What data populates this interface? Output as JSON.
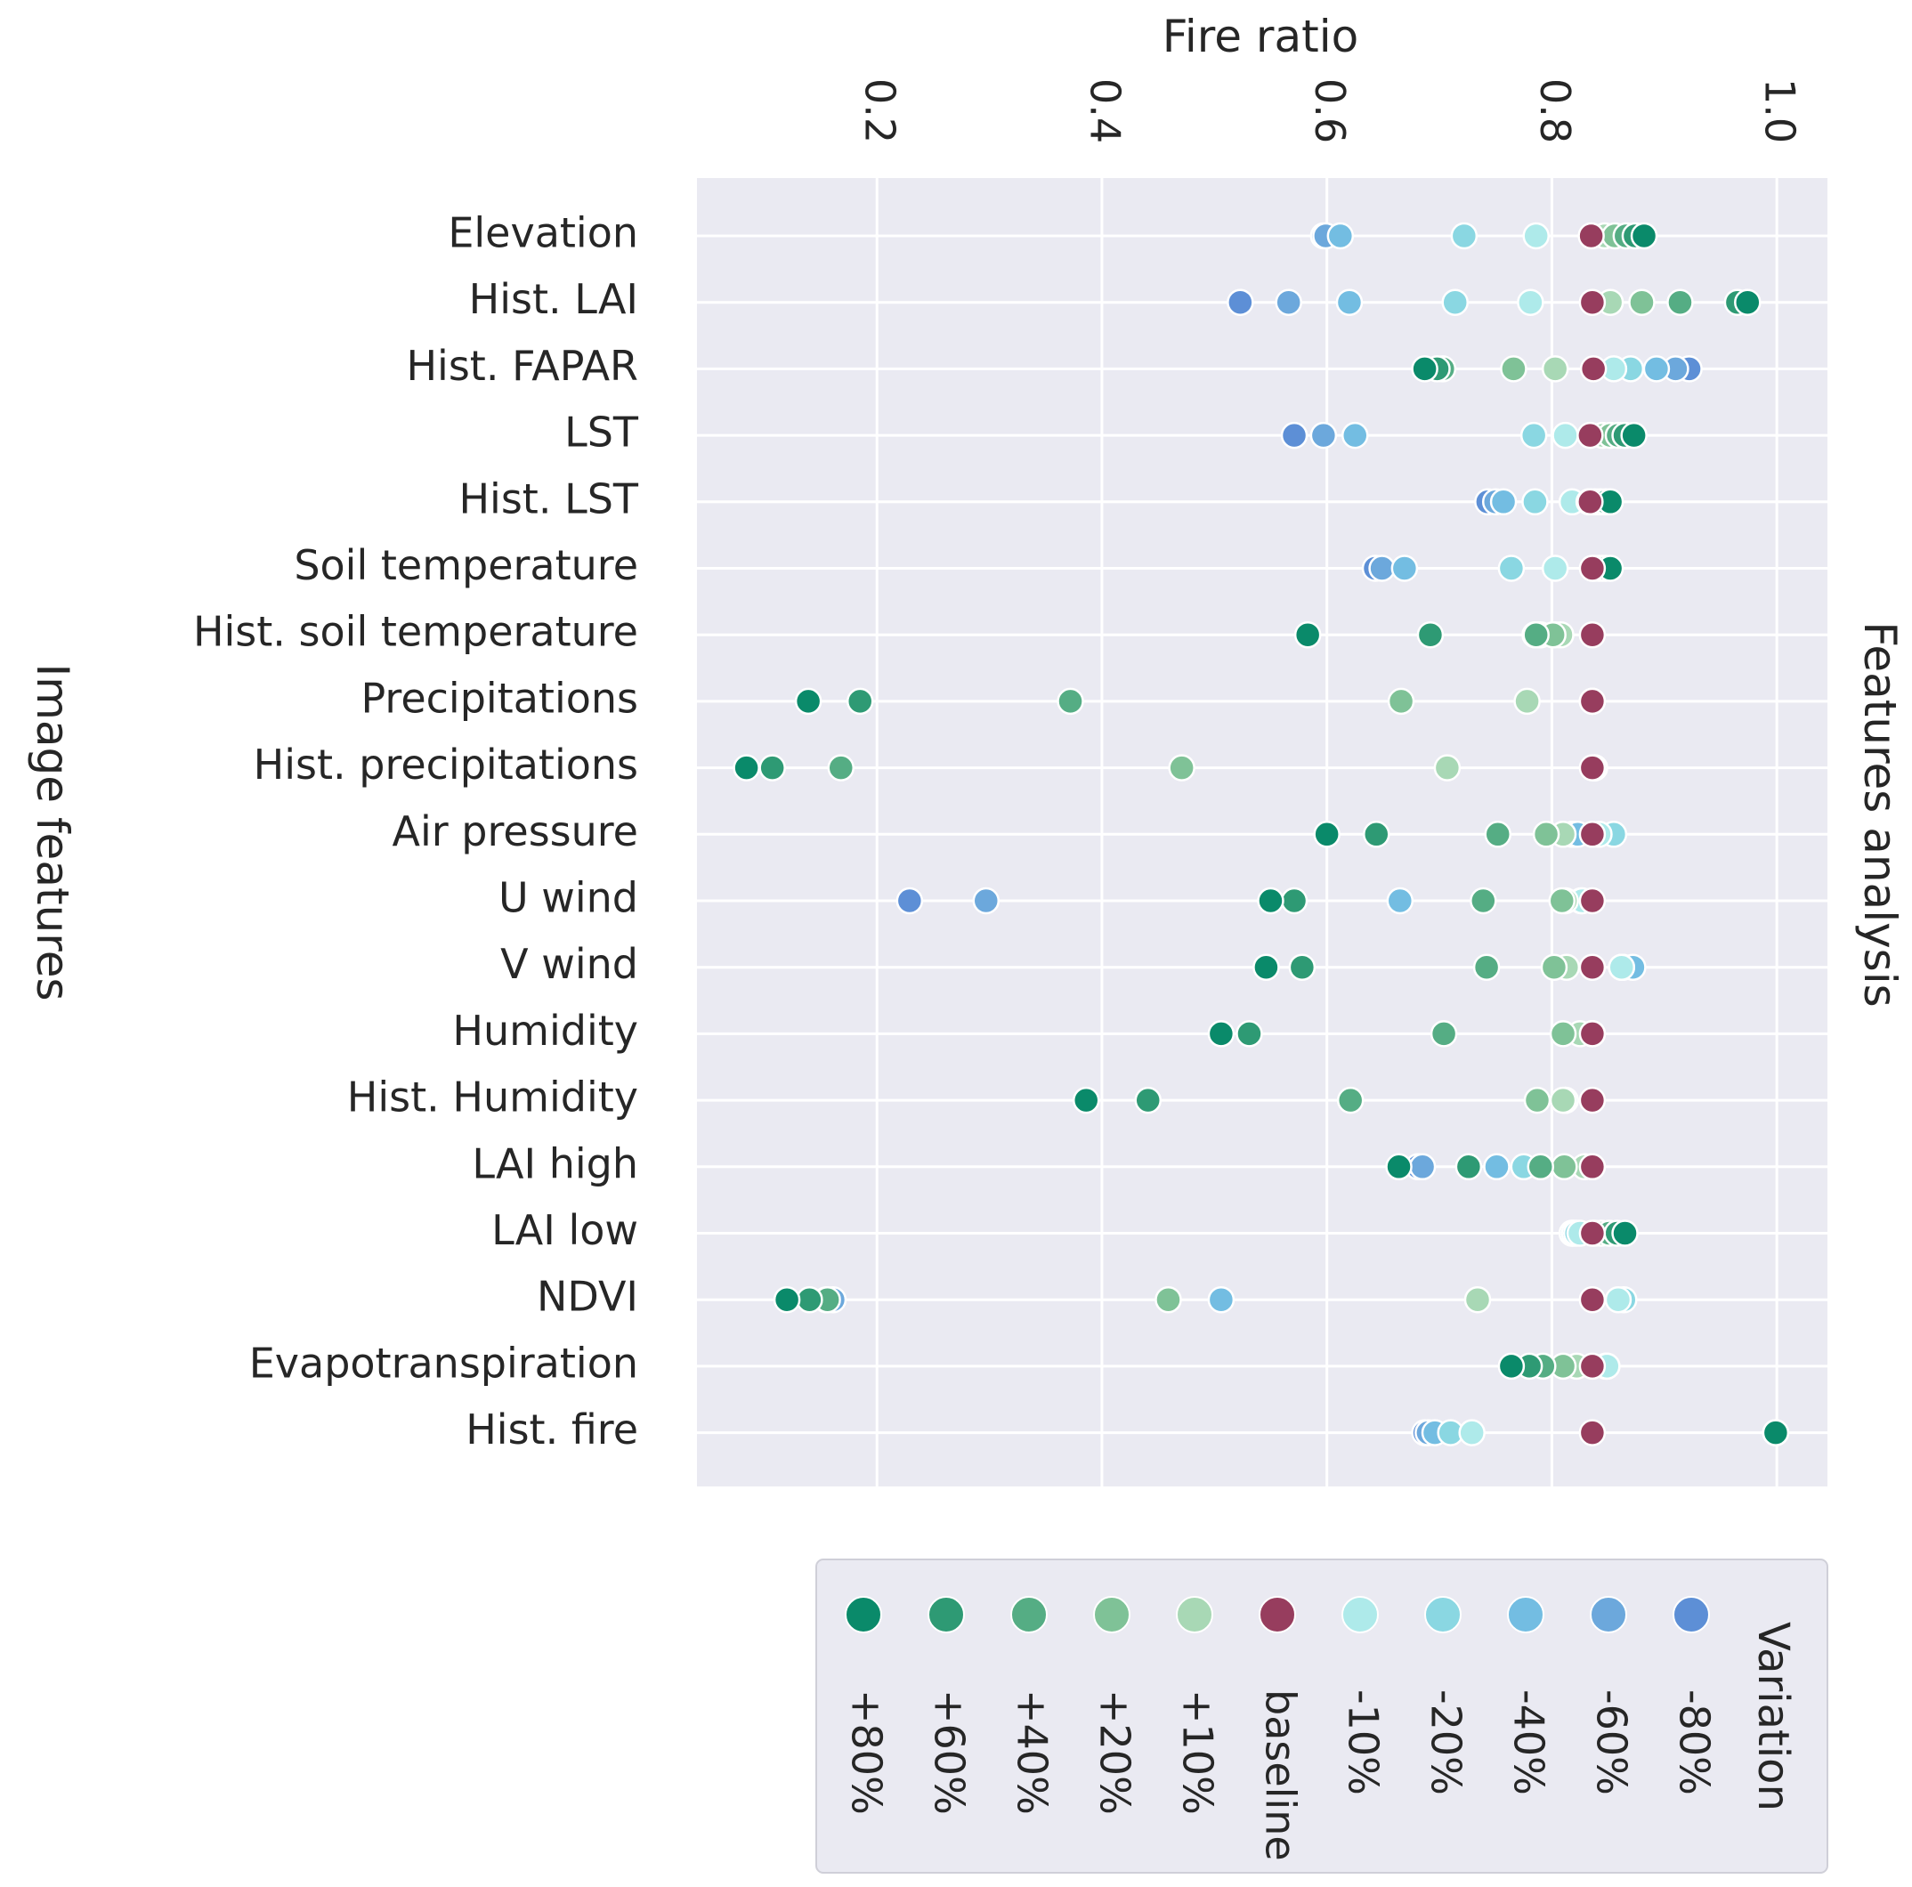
{
  "chart_data": {
    "type": "scatter",
    "title": "Features analysis",
    "xlabel": "Fire ratio",
    "ylabel": "Image features",
    "xlim": [
      0.04,
      1.045
    ],
    "xticks": [
      "0.2",
      "0.4",
      "0.6",
      "0.8",
      "1.0"
    ],
    "xtick_values": [
      0.2,
      0.4,
      0.6,
      0.8,
      1.0
    ],
    "grid": true,
    "legend_title": "Variation",
    "legend_position": "bottom",
    "categories": [
      "Elevation",
      "Hist. LAI",
      "Hist. FAPAR",
      "LST",
      "Hist. LST",
      "Soil temperature",
      "Hist. soil temperature",
      "Precipitations",
      "Hist. precipitations",
      "Air pressure",
      "U wind",
      "V wind",
      "Humidity",
      "Hist. Humidity",
      "LAI high",
      "LAI low",
      "NDVI",
      "Evapotranspiration",
      "Hist. fire"
    ],
    "series": [
      {
        "name": "+80%",
        "color": "#0a8a6a",
        "values": [
          0.882,
          0.974,
          0.687,
          0.873,
          0.852,
          0.852,
          0.583,
          0.139,
          0.084,
          0.6,
          0.55,
          0.546,
          0.506,
          0.386,
          0.664,
          0.865,
          0.12,
          0.764,
          0.999
        ]
      },
      {
        "name": "+60%",
        "color": "#2e9a74",
        "values": [
          0.874,
          0.965,
          0.698,
          0.865,
          0.848,
          0.848,
          0.692,
          0.185,
          0.107,
          0.644,
          0.571,
          0.578,
          0.531,
          0.441,
          0.726,
          0.858,
          0.14,
          0.78,
          0.999
        ]
      },
      {
        "name": "+40%",
        "color": "#55ad84",
        "values": [
          0.866,
          0.914,
          0.703,
          0.859,
          0.843,
          0.845,
          0.786,
          0.372,
          0.168,
          0.752,
          0.739,
          0.742,
          0.704,
          0.621,
          0.79,
          0.851,
          0.156,
          0.792,
          0.999
        ]
      },
      {
        "name": "+20%",
        "color": "#7fc297",
        "values": [
          0.856,
          0.88,
          0.766,
          0.852,
          0.838,
          0.842,
          0.801,
          0.666,
          0.471,
          0.795,
          0.809,
          0.802,
          0.81,
          0.787,
          0.811,
          0.844,
          0.459,
          0.81,
          0.999
        ]
      },
      {
        "name": "+10%",
        "color": "#a8d8b5",
        "values": [
          0.847,
          0.852,
          0.803,
          0.845,
          0.833,
          0.838,
          0.808,
          0.778,
          0.707,
          0.81,
          0.812,
          0.813,
          0.825,
          0.81,
          0.829,
          0.838,
          0.734,
          0.822,
          0.999
        ]
      },
      {
        "name": "baseline",
        "color": "#973d5e",
        "values": [
          0.835,
          0.836,
          0.837,
          0.834,
          0.834,
          0.836,
          0.836,
          0.836,
          0.836,
          0.836,
          0.836,
          0.836,
          0.836,
          0.836,
          0.836,
          0.836,
          0.836,
          0.836,
          0.836
        ]
      },
      {
        "name": "-10%",
        "color": "#aeeaea",
        "values": [
          0.786,
          0.781,
          0.855,
          0.812,
          0.818,
          0.803,
          0.803,
          0.836,
          0.838,
          0.842,
          0.827,
          0.862,
          0.836,
          0.812,
          0.836,
          0.825,
          0.859,
          0.849,
          0.729
        ]
      },
      {
        "name": "-20%",
        "color": "#8ad7e2",
        "values": [
          0.722,
          0.714,
          0.87,
          0.784,
          0.785,
          0.764,
          0.79,
          0.836,
          0.838,
          0.855,
          0.826,
          0.862,
          0.836,
          0.812,
          0.775,
          0.822,
          0.864,
          0.849,
          0.71
        ]
      },
      {
        "name": "-40%",
        "color": "#73bde2",
        "values": [
          0.612,
          0.62,
          0.893,
          0.625,
          0.757,
          0.669,
          0.787,
          0.836,
          0.838,
          0.823,
          0.665,
          0.872,
          0.836,
          0.812,
          0.751,
          0.82,
          0.506,
          0.849,
          0.696
        ]
      },
      {
        "name": "-60%",
        "color": "#6ca8dc",
        "values": [
          0.599,
          0.566,
          0.91,
          0.597,
          0.75,
          0.649,
          0.786,
          0.836,
          0.838,
          0.819,
          0.297,
          0.863,
          0.836,
          0.812,
          0.685,
          0.818,
          0.161,
          0.848,
          0.69
        ]
      },
      {
        "name": "-80%",
        "color": "#5d8fd6",
        "values": [
          0.597,
          0.523,
          0.922,
          0.571,
          0.743,
          0.643,
          0.785,
          0.836,
          0.838,
          0.818,
          0.229,
          0.863,
          0.836,
          0.812,
          0.681,
          0.818,
          0.155,
          0.848,
          0.687
        ]
      }
    ]
  }
}
